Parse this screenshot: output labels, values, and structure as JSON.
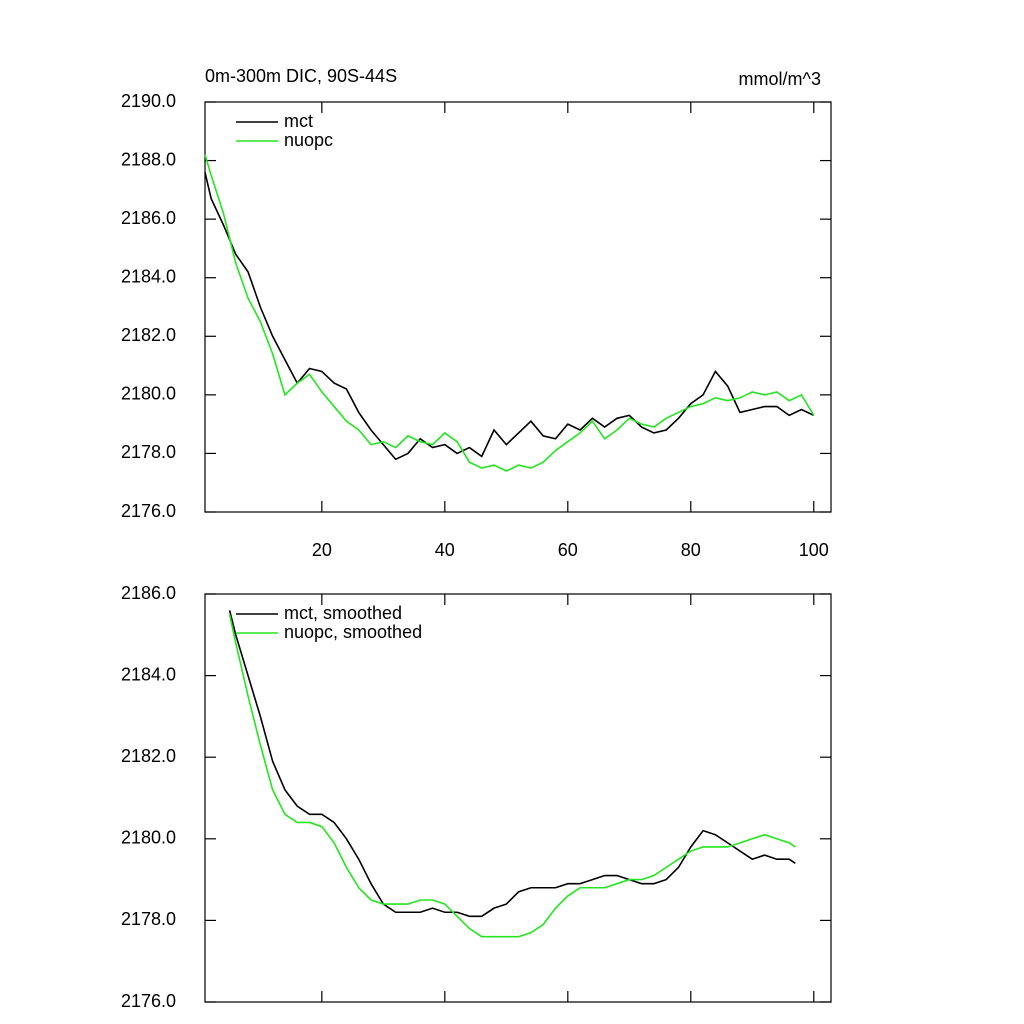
{
  "chart_data": [
    {
      "type": "line",
      "title": "0m-300m DIC, 90S-44S",
      "units": "mmol/m^3",
      "xlim": [
        1,
        102.8
      ],
      "xticks": [
        20,
        40,
        60,
        80,
        100
      ],
      "xtick_labels": true,
      "ylim": [
        2176,
        2190
      ],
      "yticks": [
        {
          "value": 2176,
          "label": "2176.0"
        },
        {
          "value": 2178,
          "label": "2178.0"
        },
        {
          "value": 2180,
          "label": "2180.0"
        },
        {
          "value": 2182,
          "label": "2182.0"
        },
        {
          "value": 2184,
          "label": "2184.0"
        },
        {
          "value": 2186,
          "label": "2186.0"
        },
        {
          "value": 2188,
          "label": "2188.0"
        },
        {
          "value": 2190,
          "label": "2190.0"
        }
      ],
      "x": [
        1,
        2,
        4,
        6,
        8,
        10,
        12,
        14,
        16,
        18,
        20,
        22,
        24,
        26,
        28,
        30,
        32,
        34,
        36,
        38,
        40,
        42,
        44,
        46,
        48,
        50,
        52,
        54,
        56,
        58,
        60,
        62,
        64,
        66,
        68,
        70,
        72,
        74,
        76,
        78,
        80,
        82,
        84,
        86,
        88,
        90,
        92,
        94,
        96,
        98,
        100
      ],
      "series": [
        {
          "name": "mct",
          "color": "#000000",
          "values": [
            2187.6,
            2186.7,
            2185.8,
            2184.8,
            2184.2,
            2183.0,
            2182.0,
            2181.2,
            2180.4,
            2180.9,
            2180.8,
            2180.4,
            2180.2,
            2179.4,
            2178.8,
            2178.3,
            2177.8,
            2178.0,
            2178.5,
            2178.2,
            2178.3,
            2178.0,
            2178.2,
            2177.9,
            2178.8,
            2178.3,
            2178.7,
            2179.1,
            2178.6,
            2178.5,
            2179.0,
            2178.8,
            2179.2,
            2178.9,
            2179.2,
            2179.3,
            2178.9,
            2178.7,
            2178.8,
            2179.2,
            2179.7,
            2180.0,
            2180.8,
            2180.3,
            2179.4,
            2179.5,
            2179.6,
            2179.6,
            2179.3,
            2179.5,
            2179.3
          ]
        },
        {
          "name": "nuopc",
          "color": "#22e61e",
          "values": [
            2188.2,
            2187.5,
            2186.2,
            2184.5,
            2183.3,
            2182.5,
            2181.4,
            2180.0,
            2180.4,
            2180.7,
            2180.1,
            2179.6,
            2179.1,
            2178.8,
            2178.3,
            2178.4,
            2178.2,
            2178.6,
            2178.4,
            2178.3,
            2178.7,
            2178.4,
            2177.7,
            2177.5,
            2177.6,
            2177.4,
            2177.6,
            2177.5,
            2177.7,
            2178.1,
            2178.4,
            2178.7,
            2179.1,
            2178.5,
            2178.8,
            2179.2,
            2179.0,
            2178.9,
            2179.2,
            2179.4,
            2179.6,
            2179.7,
            2179.9,
            2179.8,
            2179.9,
            2180.1,
            2180.0,
            2180.1,
            2179.8,
            2180.0,
            2179.3
          ]
        }
      ]
    },
    {
      "type": "line",
      "xlim": [
        1,
        102.8
      ],
      "xticks": [
        20,
        40,
        60,
        80,
        100
      ],
      "xtick_labels": false,
      "ylim": [
        2176,
        2186
      ],
      "yticks": [
        {
          "value": 2176,
          "label": "2176.0"
        },
        {
          "value": 2178,
          "label": "2178.0"
        },
        {
          "value": 2180,
          "label": "2180.0"
        },
        {
          "value": 2182,
          "label": "2182.0"
        },
        {
          "value": 2184,
          "label": "2184.0"
        },
        {
          "value": 2186,
          "label": "2186.0"
        }
      ],
      "x": [
        5,
        6,
        8,
        10,
        12,
        14,
        16,
        18,
        20,
        22,
        24,
        26,
        28,
        30,
        32,
        34,
        36,
        38,
        40,
        42,
        44,
        46,
        48,
        50,
        52,
        54,
        56,
        58,
        60,
        62,
        64,
        66,
        68,
        70,
        72,
        74,
        76,
        78,
        80,
        82,
        84,
        86,
        88,
        90,
        92,
        94,
        96,
        97
      ],
      "series": [
        {
          "name": "mct, smoothed",
          "color": "#000000",
          "values": [
            2185.6,
            2185.0,
            2184.0,
            2183.0,
            2181.9,
            2181.2,
            2180.8,
            2180.6,
            2180.6,
            2180.4,
            2180.0,
            2179.5,
            2178.9,
            2178.4,
            2178.2,
            2178.2,
            2178.2,
            2178.3,
            2178.2,
            2178.2,
            2178.1,
            2178.1,
            2178.3,
            2178.4,
            2178.7,
            2178.8,
            2178.8,
            2178.8,
            2178.9,
            2178.9,
            2179.0,
            2179.1,
            2179.1,
            2179.0,
            2178.9,
            2178.9,
            2179.0,
            2179.3,
            2179.8,
            2180.2,
            2180.1,
            2179.9,
            2179.7,
            2179.5,
            2179.6,
            2179.5,
            2179.5,
            2179.4
          ]
        },
        {
          "name": "nuopc, smoothed",
          "color": "#22e61e",
          "values": [
            2185.5,
            2184.8,
            2183.5,
            2182.3,
            2181.2,
            2180.6,
            2180.4,
            2180.4,
            2180.3,
            2179.9,
            2179.3,
            2178.8,
            2178.5,
            2178.4,
            2178.4,
            2178.4,
            2178.5,
            2178.5,
            2178.4,
            2178.1,
            2177.8,
            2177.6,
            2177.6,
            2177.6,
            2177.6,
            2177.7,
            2177.9,
            2178.3,
            2178.6,
            2178.8,
            2178.8,
            2178.8,
            2178.9,
            2179.0,
            2179.0,
            2179.1,
            2179.3,
            2179.5,
            2179.7,
            2179.8,
            2179.8,
            2179.8,
            2179.9,
            2180.0,
            2180.1,
            2180.0,
            2179.9,
            2179.8
          ]
        }
      ]
    }
  ]
}
